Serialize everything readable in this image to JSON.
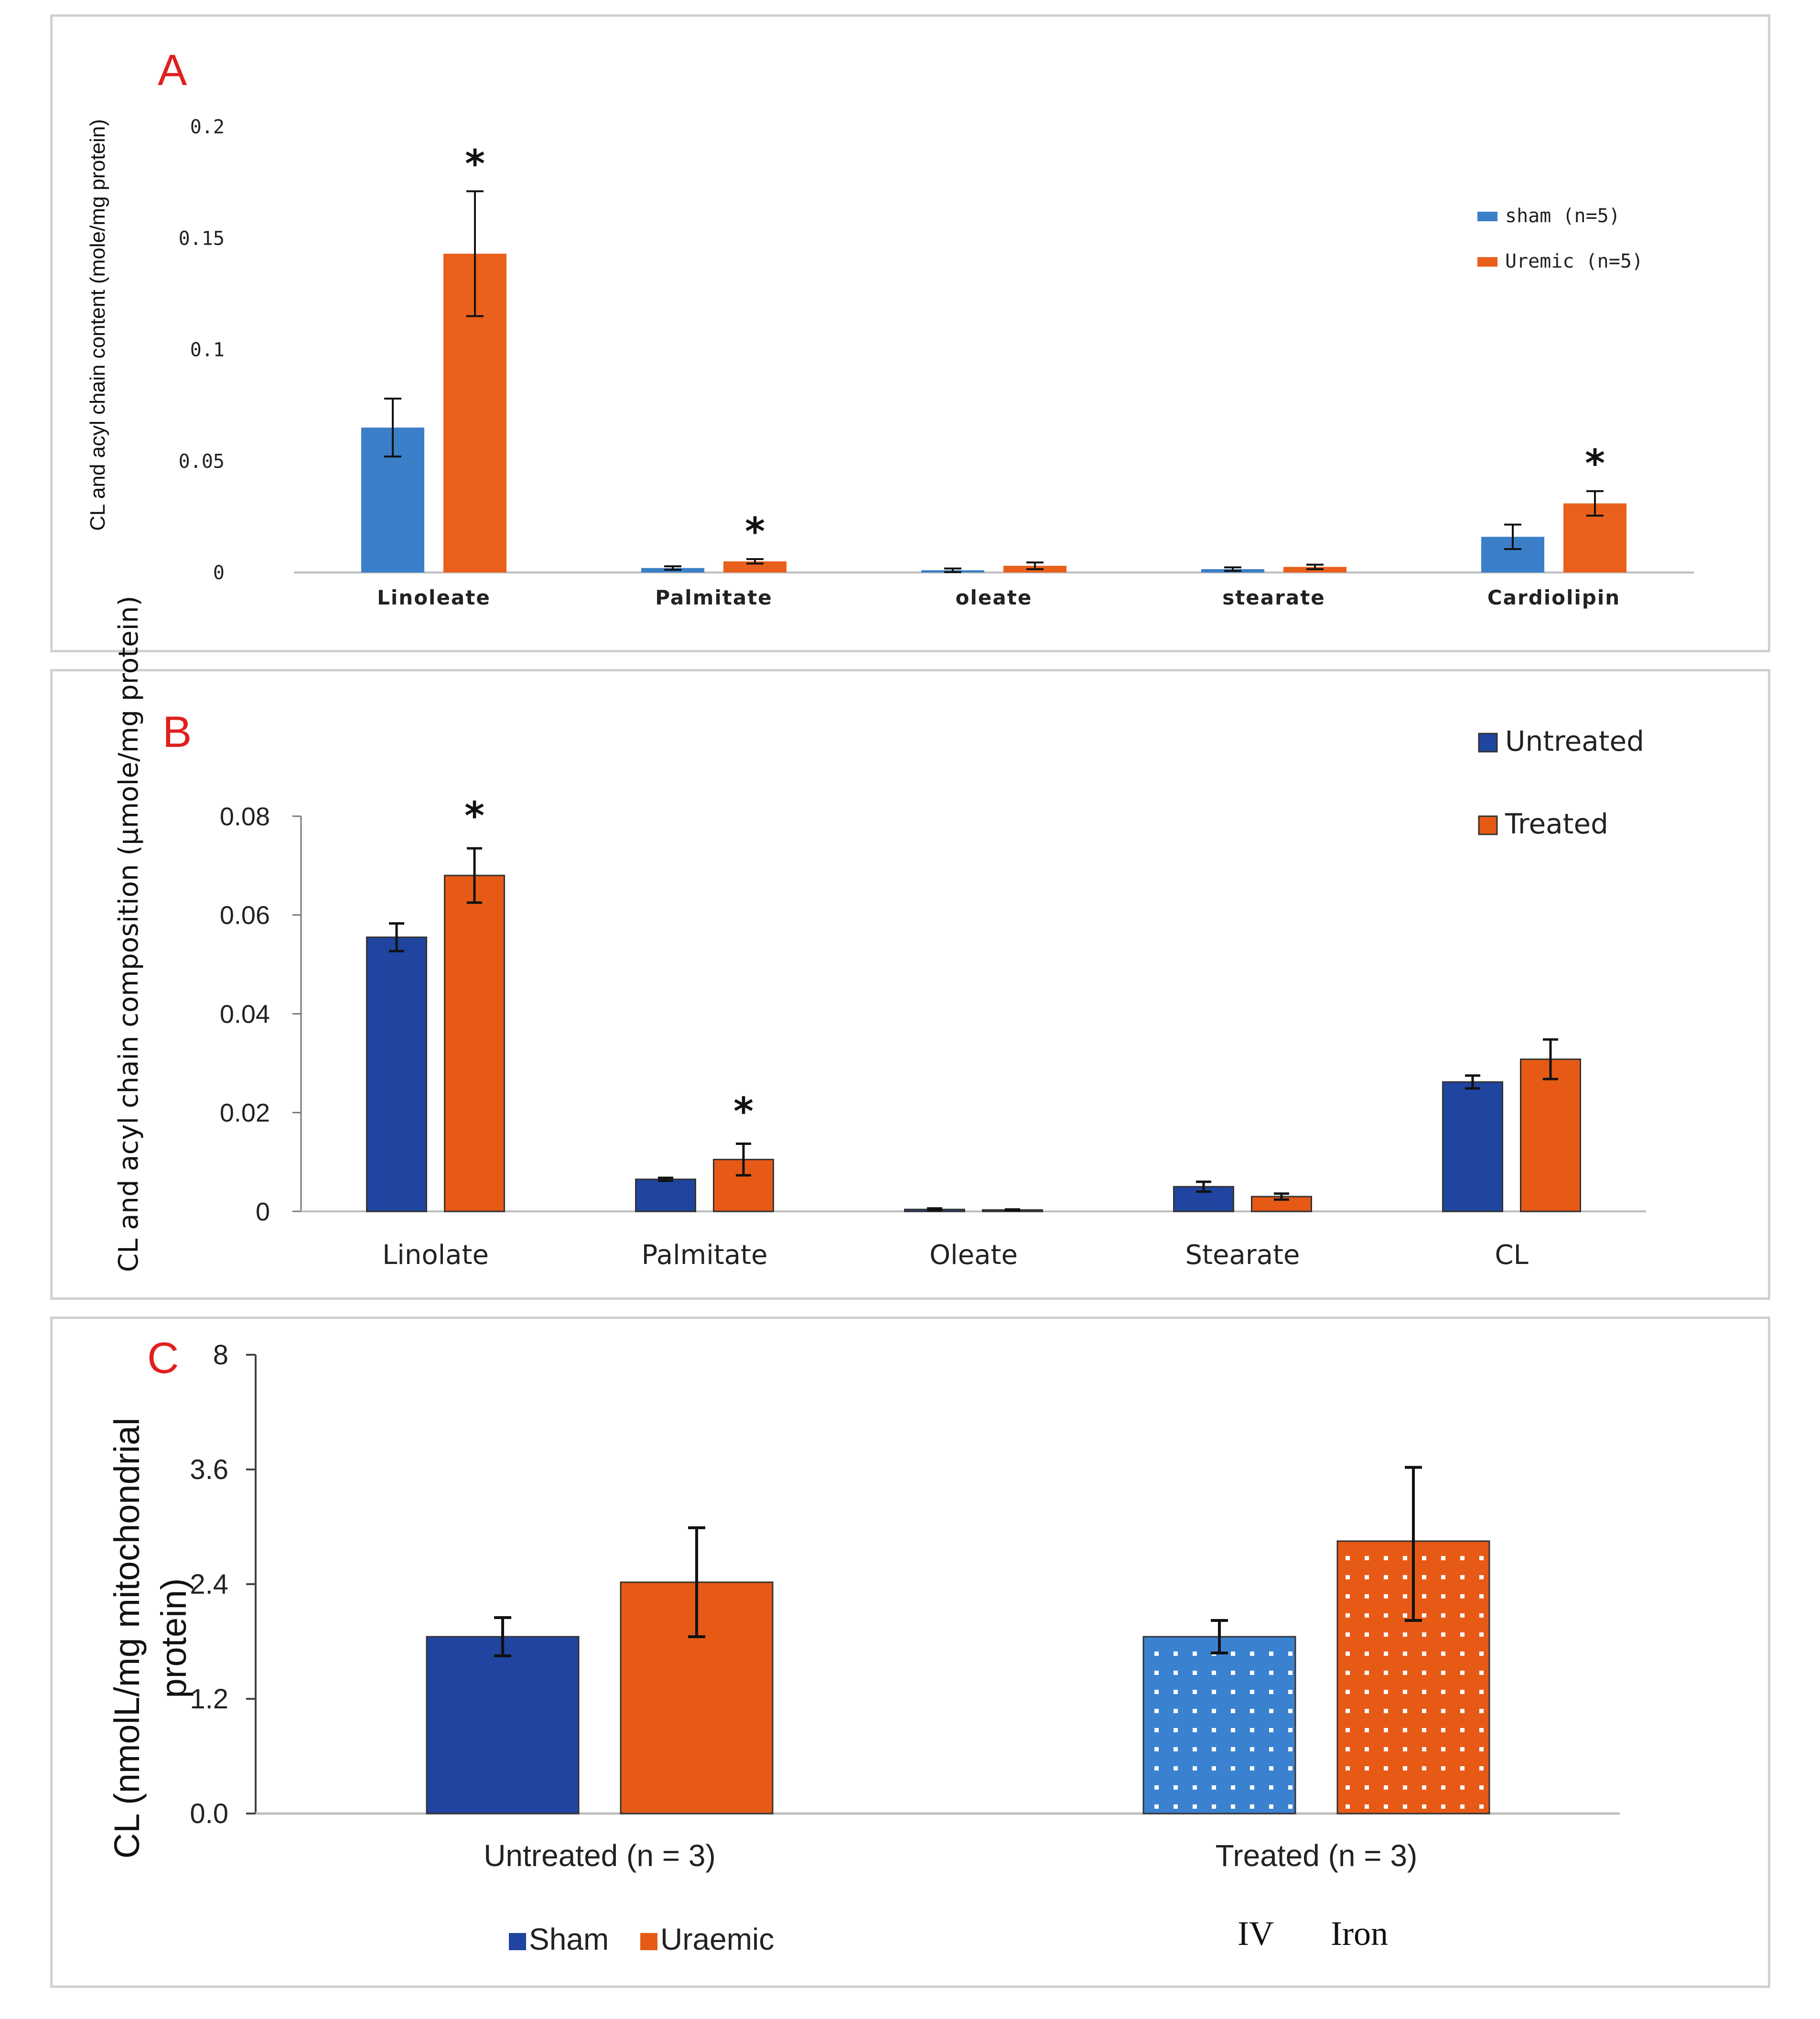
{
  "panels": [
    {
      "label": "A",
      "chart_data": {
        "type": "bar",
        "title": "",
        "ylabel": "CL and acyl chain content (mole/mg protein)",
        "xlabel": "",
        "categories": [
          "Linoleate",
          "Palmitate",
          "oleate",
          "stearate",
          "Cardiolipin"
        ],
        "ylim": [
          0,
          0.2
        ],
        "yticks": [
          0,
          0.05,
          0.1,
          0.15,
          0.2
        ],
        "ytick_labels": [
          "0",
          "0.05",
          "0.1",
          "0.15",
          "0.2"
        ],
        "legend_position": "top-right",
        "grid": false,
        "series": [
          {
            "name": "sham (n=5)",
            "color": "#3a7fc8",
            "values": [
              0.065,
              0.002,
              0.001,
              0.0015,
              0.016
            ],
            "errors": [
              0.013,
              0.0008,
              0.0008,
              0.0008,
              0.0055
            ]
          },
          {
            "name": "Uremic (n=5)",
            "color": "#e8601c",
            "values": [
              0.143,
              0.005,
              0.003,
              0.0025,
              0.031
            ],
            "errors": [
              0.028,
              0.001,
              0.0015,
              0.001,
              0.0055
            ]
          }
        ],
        "annotations": [
          {
            "category": "Linoleate",
            "series": 1,
            "text": "*"
          },
          {
            "category": "Palmitate",
            "series": 1,
            "text": "*"
          },
          {
            "category": "Cardiolipin",
            "series": 1,
            "text": "*"
          }
        ]
      }
    },
    {
      "label": "B",
      "chart_data": {
        "type": "bar",
        "title": "",
        "ylabel": "CL and acyl chain composition (μmole/mg protein)",
        "xlabel": "",
        "categories": [
          "Linolate",
          "Palmitate",
          "Oleate",
          "Stearate",
          "CL"
        ],
        "ylim": [
          0,
          0.08
        ],
        "yticks": [
          0,
          0.02,
          0.04,
          0.06,
          0.08
        ],
        "ytick_labels": [
          "0",
          "0.02",
          "0.04",
          "0.06",
          "0.08"
        ],
        "legend_position": "top-right",
        "grid": false,
        "series": [
          {
            "name": "Untreated",
            "color": "#1f45a0",
            "values": [
              0.0555,
              0.0065,
              0.0004,
              0.005,
              0.0262
            ],
            "errors": [
              0.0028,
              0.0003,
              0.0002,
              0.001,
              0.0013
            ]
          },
          {
            "name": "Treated",
            "color": "#e65a16",
            "values": [
              0.068,
              0.0105,
              0.0003,
              0.003,
              0.0308
            ],
            "errors": [
              0.0055,
              0.0032,
              0.0001,
              0.0006,
              0.004
            ]
          }
        ],
        "annotations": [
          {
            "category": "Linolate",
            "series": 1,
            "text": "*"
          },
          {
            "category": "Palmitate",
            "series": 1,
            "text": "*"
          }
        ]
      }
    },
    {
      "label": "C",
      "chart_data": {
        "type": "bar",
        "title": "",
        "ylabel": "CL (nmolL/mg mitochondrial protein)",
        "xlabel": "",
        "categories": [
          "Untreated (n = 3)",
          "Treated  (n = 3)"
        ],
        "yticks": [
          0.0,
          1.2,
          2.4,
          3.6,
          8
        ],
        "ytick_labels": [
          "0.0",
          "1.2",
          "2.4",
          "3.6",
          "8"
        ],
        "axis_note": "y-axis tick labels are printed as 0.0, 1.2, 2.4, 3.6, 8 at equal spacing",
        "legend_position": "bottom-left",
        "grid": false,
        "series": [
          {
            "name": "Sham",
            "color": "#1f45a0",
            "values": [
              1.85,
              1.85
            ],
            "errors": [
              0.2,
              0.17
            ],
            "pattern": [
              false,
              true
            ],
            "pattern_colors": [
              null,
              "#3a82cf"
            ]
          },
          {
            "name": "Uraemic",
            "color": "#e65a16",
            "values": [
              2.42,
              2.85
            ],
            "errors": [
              0.57,
              0.83
            ],
            "pattern": [
              false,
              true
            ],
            "pattern_colors": [
              null,
              "#e65a16"
            ]
          }
        ],
        "extra_label": [
          "IV",
          "Iron"
        ]
      }
    }
  ]
}
